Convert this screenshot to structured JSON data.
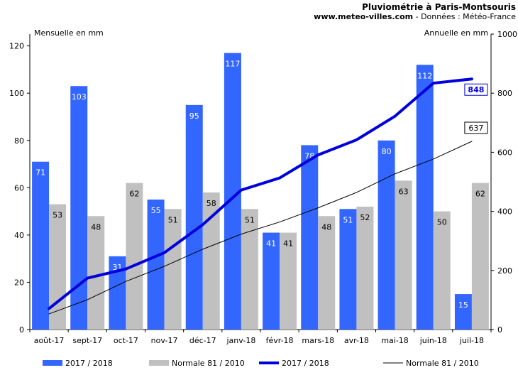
{
  "chart_data": {
    "type": "bar",
    "title": "Pluviométrie à Paris-Montsouris",
    "subtitle_site": "www.meteo-villes.com",
    "subtitle_rest": " - Données : Météo-France",
    "ylabel_left": "Mensuelle en mm",
    "ylabel_right": "Annuelle en mm",
    "ylim_left": [
      0,
      125
    ],
    "ylim_right": [
      0,
      1000
    ],
    "yticks_left": [
      "0",
      "20",
      "40",
      "60",
      "80",
      "100",
      "120"
    ],
    "yticks_right": [
      "0",
      "200",
      "400",
      "600",
      "800",
      "1000"
    ],
    "categories": [
      "août-17",
      "sept-17",
      "oct-17",
      "nov-17",
      "déc-17",
      "janv-18",
      "févr-18",
      "mars-18",
      "avr-18",
      "mai-18",
      "juin-18",
      "juil-18"
    ],
    "series": [
      {
        "name": "2017 / 2018",
        "kind": "bar",
        "axis": "left",
        "color": "#3366ff",
        "label_color": "#ffffff",
        "values": [
          71,
          103,
          31,
          55,
          95,
          117,
          41,
          78,
          51,
          80,
          112,
          15
        ]
      },
      {
        "name": "Normale 81 / 2010",
        "kind": "bar",
        "axis": "left",
        "color": "#c0c0c0",
        "label_color": "#000000",
        "values": [
          53,
          48,
          62,
          51,
          58,
          51,
          41,
          48,
          52,
          63,
          50,
          62
        ]
      },
      {
        "name": "2017 / 2018",
        "kind": "line",
        "axis": "right",
        "color": "#0000dd",
        "values": [
          71,
          174,
          205,
          260,
          355,
          472,
          513,
          591,
          642,
          722,
          834,
          848
        ],
        "end_label": "848"
      },
      {
        "name": "Normale 81 / 2010",
        "kind": "line",
        "axis": "right",
        "color": "#000000",
        "values": [
          53,
          101,
          163,
          214,
          272,
          323,
          364,
          412,
          464,
          527,
          577,
          637
        ],
        "end_label": "637"
      }
    ],
    "grid": false,
    "legend_position": "bottom"
  }
}
